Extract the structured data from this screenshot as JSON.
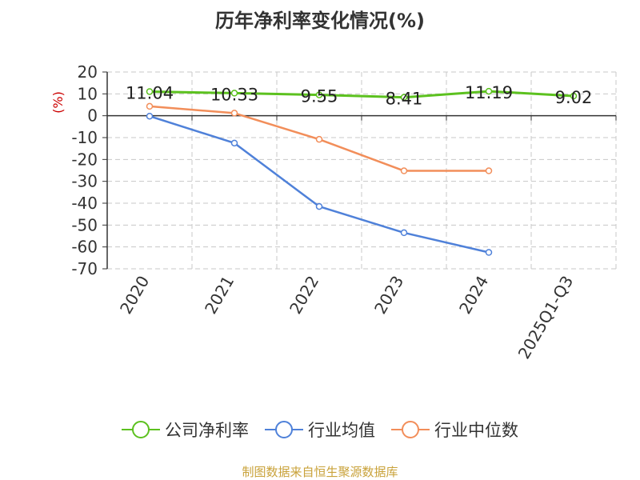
{
  "colors": {
    "company": "#5cc11f",
    "industry_avg": "#4f81d9",
    "industry_median": "#f28e5a",
    "axis_unit": "#cc0000",
    "grid": "#c8c8c8",
    "axis": "#333333",
    "source": "#c9a23a"
  },
  "footer": {
    "source": "制图数据来自恒生聚源数据库"
  },
  "chart_data": {
    "type": "line",
    "title": "历年净利率变化情况(%)",
    "ylabel": "(%)",
    "xlabel": "",
    "categories": [
      "2020",
      "2021",
      "2022",
      "2023",
      "2024",
      "2025Q1-Q3"
    ],
    "ylim": [
      -70,
      20
    ],
    "yticks": [
      20,
      10,
      0,
      -10,
      -20,
      -30,
      -40,
      -50,
      -60,
      -70
    ],
    "grid": true,
    "legend_position": "bottom",
    "series": [
      {
        "name": "公司净利率",
        "color": "#5cc11f",
        "values": [
          11.04,
          10.33,
          9.55,
          8.41,
          11.19,
          9.02
        ],
        "data_labels": [
          "11.04",
          "10.33",
          "9.55",
          "8.41",
          "11.19",
          "9.02"
        ]
      },
      {
        "name": "行业均值",
        "color": "#4f81d9",
        "values": [
          -0.2,
          -12.5,
          -41.5,
          -53.5,
          -62.5,
          null
        ]
      },
      {
        "name": "行业中位数",
        "color": "#f28e5a",
        "values": [
          4.3,
          1.2,
          -10.8,
          -25.2,
          -25.2,
          null
        ]
      }
    ]
  }
}
